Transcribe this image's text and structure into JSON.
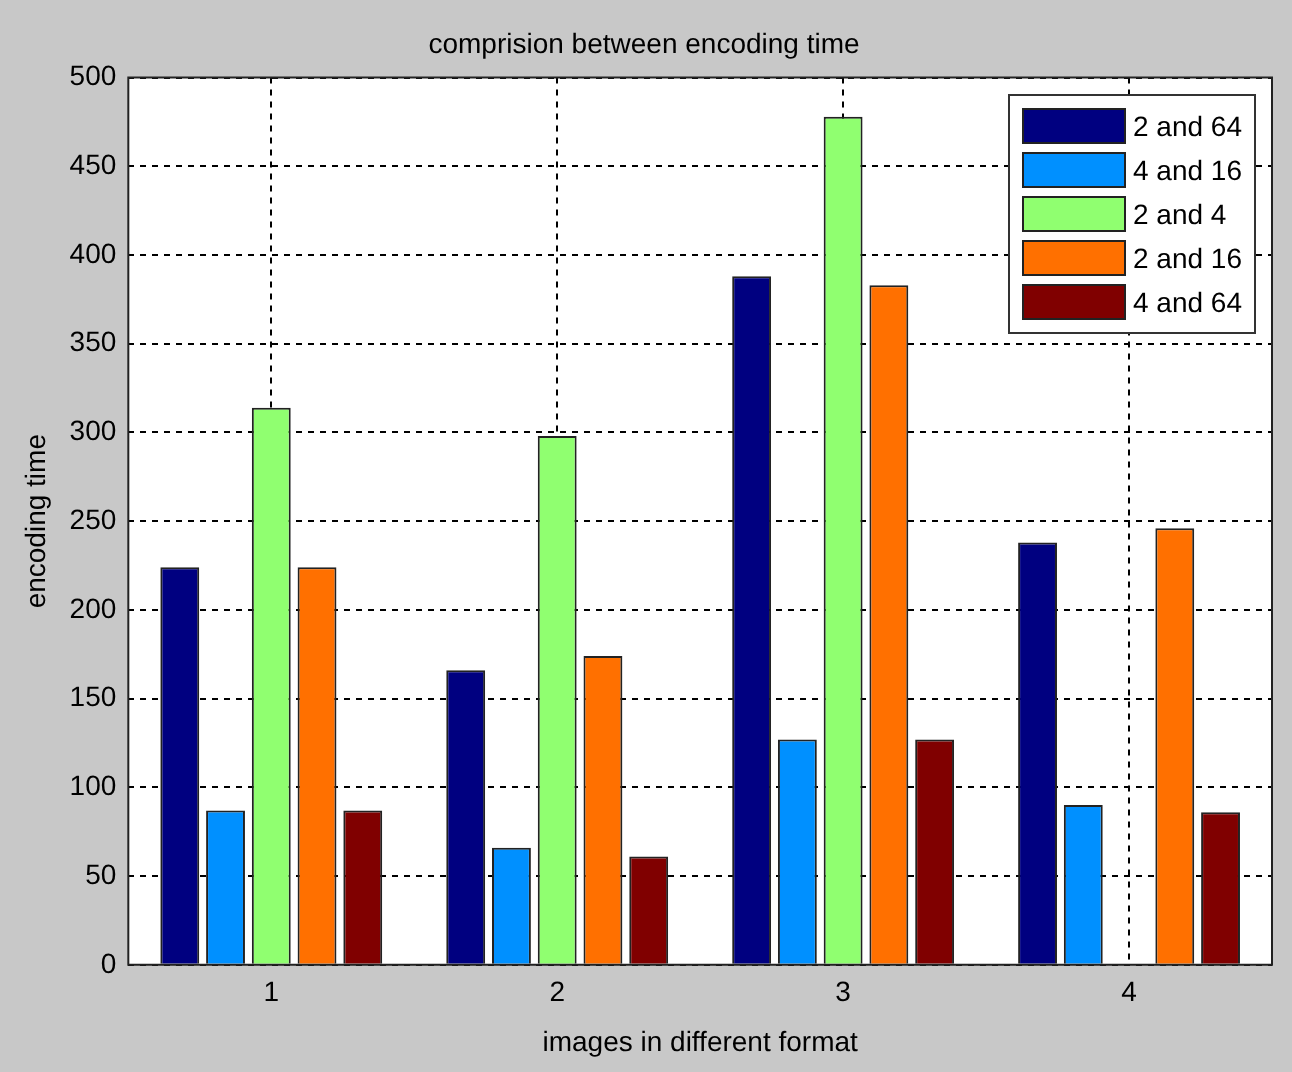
{
  "chart_data": {
    "type": "bar",
    "title": "comprision between encoding time",
    "xlabel": "images in different format",
    "ylabel": "encoding time",
    "categories": [
      "1",
      "2",
      "3",
      "4"
    ],
    "series": [
      {
        "name": "2 and 64",
        "color": "#000080",
        "values": [
          224,
          166,
          388,
          238
        ]
      },
      {
        "name": "4 and 16",
        "color": "#0090ff",
        "values": [
          87,
          66,
          127,
          90
        ]
      },
      {
        "name": "2 and 4",
        "color": "#90ff70",
        "values": [
          314,
          298,
          478,
          null
        ]
      },
      {
        "name": "2 and 16",
        "color": "#ff7000",
        "values": [
          224,
          174,
          383,
          246
        ]
      },
      {
        "name": "4 and 64",
        "color": "#800000",
        "values": [
          87,
          61,
          127,
          86
        ]
      }
    ],
    "ylim": [
      0,
      500
    ],
    "yticks": [
      0,
      50,
      100,
      150,
      200,
      250,
      300,
      350,
      400,
      450,
      500
    ],
    "grid": true,
    "legend": "top right"
  }
}
